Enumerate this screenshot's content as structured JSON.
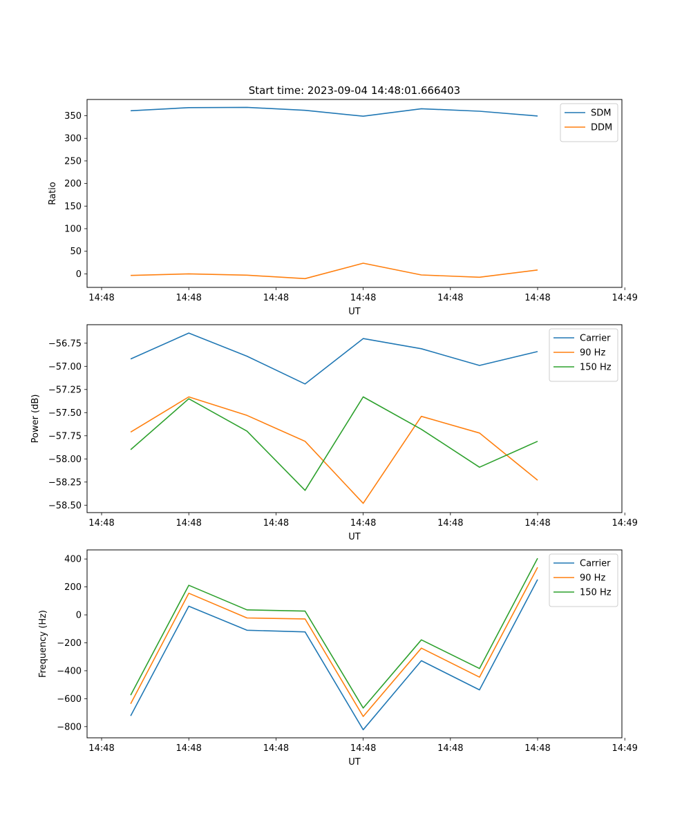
{
  "figure": {
    "title": "Start time: 2023-09-04 14:48:01.666403"
  },
  "chart_data": [
    {
      "type": "line",
      "xlabel": "UT",
      "ylabel": "Ratio",
      "x": [
        1,
        2,
        3,
        4,
        5,
        6,
        7,
        8
      ],
      "xlim": [
        0.25,
        9.45
      ],
      "x_ticks": [
        0.5,
        2.0,
        3.5,
        5.0,
        6.5,
        8.0,
        9.5
      ],
      "x_tick_labels": [
        "14:48",
        "14:48",
        "14:48",
        "14:48",
        "14:48",
        "14:48",
        "14:49"
      ],
      "ylim": [
        -30,
        386
      ],
      "y_ticks": [
        0,
        50,
        100,
        150,
        200,
        250,
        300,
        350
      ],
      "y_tick_labels": [
        "0",
        "50",
        "100",
        "150",
        "200",
        "250",
        "300",
        "350"
      ],
      "legend": "top-right",
      "series": [
        {
          "name": "SDM",
          "color": "#1f77b4",
          "values": [
            361,
            368,
            368.5,
            362,
            349,
            365.5,
            360,
            349.5
          ]
        },
        {
          "name": "DDM",
          "color": "#ff7f0e",
          "values": [
            -3.5,
            0,
            -3,
            -10.5,
            23.5,
            -2.5,
            -7.5,
            8.5
          ]
        }
      ]
    },
    {
      "type": "line",
      "xlabel": "UT",
      "ylabel": "Power (dB)",
      "x": [
        1,
        2,
        3,
        4,
        5,
        6,
        7,
        8
      ],
      "xlim": [
        0.25,
        9.45
      ],
      "x_ticks": [
        0.5,
        2.0,
        3.5,
        5.0,
        6.5,
        8.0,
        9.5
      ],
      "x_tick_labels": [
        "14:48",
        "14:48",
        "14:48",
        "14:48",
        "14:48",
        "14:48",
        "14:49"
      ],
      "ylim": [
        -58.58,
        -56.55
      ],
      "y_ticks": [
        -58.5,
        -58.25,
        -58.0,
        -57.75,
        -57.5,
        -57.25,
        -57.0,
        -56.75
      ],
      "y_tick_labels": [
        "−58.50",
        "−58.25",
        "−58.00",
        "−57.75",
        "−57.50",
        "−57.25",
        "−57.00",
        "−56.75"
      ],
      "legend": "top-right",
      "series": [
        {
          "name": "Carrier",
          "color": "#1f77b4",
          "values": [
            -56.92,
            -56.64,
            -56.89,
            -57.19,
            -56.7,
            -56.81,
            -56.99,
            -56.84
          ]
        },
        {
          "name": "90 Hz",
          "color": "#ff7f0e",
          "values": [
            -57.71,
            -57.33,
            -57.53,
            -57.81,
            -58.48,
            -57.54,
            -57.72,
            -58.23
          ]
        },
        {
          "name": "150 Hz",
          "color": "#2ca02c",
          "values": [
            -57.9,
            -57.35,
            -57.7,
            -58.34,
            -57.33,
            -57.68,
            -58.09,
            -57.81
          ]
        }
      ]
    },
    {
      "type": "line",
      "xlabel": "UT",
      "ylabel": "Frequency (Hz)",
      "x": [
        1,
        2,
        3,
        4,
        5,
        6,
        7,
        8
      ],
      "xlim": [
        0.25,
        9.45
      ],
      "x_ticks": [
        0.5,
        2.0,
        3.5,
        5.0,
        6.5,
        8.0,
        9.5
      ],
      "x_tick_labels": [
        "14:48",
        "14:48",
        "14:48",
        "14:48",
        "14:48",
        "14:48",
        "14:49"
      ],
      "ylim": [
        -880,
        465
      ],
      "y_ticks": [
        -800,
        -600,
        -400,
        -200,
        0,
        200,
        400
      ],
      "y_tick_labels": [
        "−800",
        "−600",
        "−400",
        "−200",
        "0",
        "200",
        "400"
      ],
      "legend": "top-right",
      "series": [
        {
          "name": "Carrier",
          "color": "#1f77b4",
          "values": [
            -723,
            62,
            -110,
            -122,
            -822,
            -328,
            -537,
            253
          ]
        },
        {
          "name": "90 Hz",
          "color": "#ff7f0e",
          "values": [
            -636,
            155,
            -22,
            -29,
            -727,
            -238,
            -446,
            340
          ]
        },
        {
          "name": "150 Hz",
          "color": "#2ca02c",
          "values": [
            -575,
            212,
            36,
            27,
            -667,
            -179,
            -384,
            405
          ]
        }
      ]
    }
  ]
}
